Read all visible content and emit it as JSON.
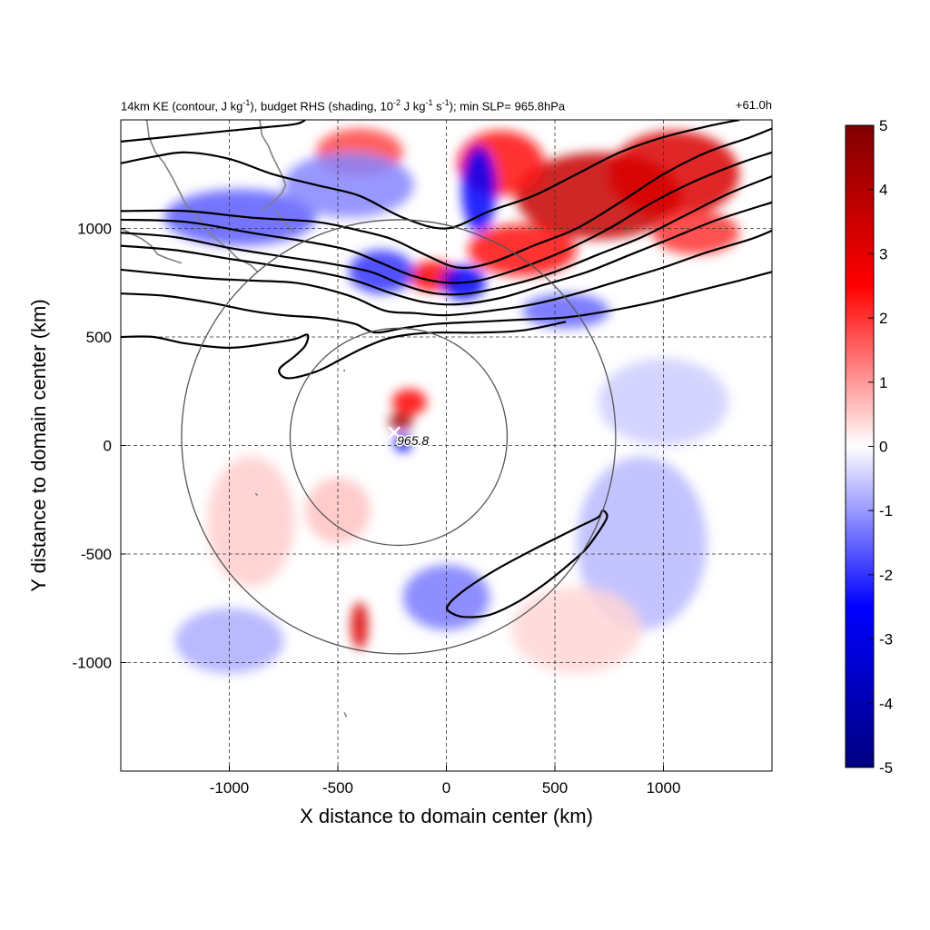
{
  "header": {
    "title_prefix": "14km KE (contour, J kg",
    "sup1": "-1",
    "title_mid1": "), budget RHS (shading, 10",
    "sup2": "-2",
    "title_mid2": " J kg",
    "sup3": "-1",
    "title_mid3": " s",
    "sup4": "-1",
    "title_suffix": "); min SLP= 965.8hPa",
    "lead_time": "+61.0h"
  },
  "chart_data": {
    "type": "heatmap",
    "xlabel": "X distance to domain center (km)",
    "ylabel": "Y distance to domain center (km)",
    "xlim": [
      -1500,
      1500
    ],
    "ylim": [
      -1500,
      1500
    ],
    "xticks": [
      -1000,
      -500,
      0,
      500,
      1000
    ],
    "yticks": [
      -1000,
      -500,
      0,
      500,
      1000
    ],
    "grid": "dashed",
    "colorbar": {
      "min": -5,
      "max": 5,
      "ticks": [
        5,
        4,
        3,
        2,
        1,
        0,
        -1,
        -2,
        -3,
        -4,
        -5
      ],
      "colors": [
        "#000080",
        "#0000ff",
        "#ffffff",
        "#ff0000",
        "#800000"
      ]
    },
    "storm_center": {
      "x": -240,
      "y": 60,
      "label": "965.8"
    },
    "range_circles": [
      {
        "cx": -220,
        "cy": 40,
        "r": 500
      },
      {
        "cx": -220,
        "cy": 40,
        "r": 1000
      }
    ],
    "ke_contours": [
      [
        [
          -1500,
          1400
        ],
        [
          -1300,
          1420
        ],
        [
          -1100,
          1440
        ],
        [
          -900,
          1460
        ],
        [
          -700,
          1480
        ],
        [
          -650,
          1500
        ]
      ],
      [
        [
          -1500,
          1300
        ],
        [
          -1350,
          1330
        ],
        [
          -1200,
          1350
        ],
        [
          -1000,
          1320
        ],
        [
          -800,
          1250
        ],
        [
          -600,
          1200
        ],
        [
          -400,
          1150
        ],
        [
          -200,
          1050
        ],
        [
          0,
          1000
        ],
        [
          200,
          1080
        ],
        [
          400,
          1150
        ],
        [
          600,
          1250
        ],
        [
          800,
          1350
        ],
        [
          1000,
          1420
        ],
        [
          1200,
          1470
        ],
        [
          1350,
          1500
        ]
      ],
      [
        [
          -1500,
          1080
        ],
        [
          -1200,
          1080
        ],
        [
          -900,
          1050
        ],
        [
          -600,
          1030
        ],
        [
          -400,
          990
        ],
        [
          -250,
          950
        ],
        [
          -100,
          880
        ],
        [
          50,
          820
        ],
        [
          200,
          840
        ],
        [
          400,
          920
        ],
        [
          600,
          1000
        ],
        [
          800,
          1120
        ],
        [
          1000,
          1250
        ],
        [
          1200,
          1350
        ],
        [
          1400,
          1420
        ],
        [
          1500,
          1460
        ]
      ],
      [
        [
          -1500,
          1040
        ],
        [
          -1200,
          1030
        ],
        [
          -900,
          980
        ],
        [
          -650,
          940
        ],
        [
          -450,
          900
        ],
        [
          -300,
          840
        ],
        [
          -150,
          780
        ],
        [
          0,
          750
        ],
        [
          150,
          760
        ],
        [
          350,
          820
        ],
        [
          550,
          900
        ],
        [
          750,
          1000
        ],
        [
          950,
          1120
        ],
        [
          1150,
          1220
        ],
        [
          1350,
          1300
        ],
        [
          1500,
          1350
        ]
      ],
      [
        [
          -1500,
          980
        ],
        [
          -1250,
          960
        ],
        [
          -1000,
          910
        ],
        [
          -750,
          870
        ],
        [
          -550,
          840
        ],
        [
          -350,
          800
        ],
        [
          -200,
          740
        ],
        [
          -50,
          700
        ],
        [
          100,
          700
        ],
        [
          300,
          740
        ],
        [
          500,
          800
        ],
        [
          700,
          880
        ],
        [
          900,
          960
        ],
        [
          1100,
          1060
        ],
        [
          1300,
          1160
        ],
        [
          1500,
          1240
        ]
      ],
      [
        [
          -1500,
          920
        ],
        [
          -1250,
          900
        ],
        [
          -1000,
          860
        ],
        [
          -800,
          830
        ],
        [
          -600,
          800
        ],
        [
          -420,
          760
        ],
        [
          -250,
          700
        ],
        [
          -100,
          660
        ],
        [
          50,
          650
        ],
        [
          250,
          680
        ],
        [
          450,
          740
        ],
        [
          650,
          800
        ],
        [
          850,
          880
        ],
        [
          1050,
          960
        ],
        [
          1250,
          1040
        ],
        [
          1500,
          1120
        ]
      ],
      [
        [
          -1500,
          810
        ],
        [
          -1300,
          790
        ],
        [
          -1100,
          770
        ],
        [
          -900,
          760
        ],
        [
          -700,
          750
        ],
        [
          -550,
          720
        ],
        [
          -420,
          680
        ],
        [
          -280,
          620
        ],
        [
          -150,
          610
        ],
        [
          0,
          600
        ],
        [
          200,
          620
        ],
        [
          400,
          650
        ],
        [
          600,
          700
        ],
        [
          800,
          760
        ],
        [
          1000,
          820
        ],
        [
          1200,
          890
        ],
        [
          1400,
          950
        ],
        [
          1500,
          990
        ]
      ],
      [
        [
          -1500,
          700
        ],
        [
          -1300,
          690
        ],
        [
          -1100,
          660
        ],
        [
          -900,
          620
        ],
        [
          -750,
          600
        ],
        [
          -600,
          590
        ],
        [
          -520,
          580
        ],
        [
          -420,
          560
        ],
        [
          -380,
          540
        ],
        [
          -320,
          520
        ],
        [
          -200,
          540
        ],
        [
          -50,
          560
        ],
        [
          150,
          570
        ],
        [
          350,
          580
        ],
        [
          550,
          590
        ],
        [
          750,
          620
        ],
        [
          950,
          660
        ],
        [
          1150,
          710
        ],
        [
          1350,
          760
        ],
        [
          1500,
          800
        ]
      ],
      [
        [
          -1500,
          500
        ],
        [
          -1350,
          500
        ],
        [
          -1200,
          470
        ],
        [
          -1000,
          450
        ],
        [
          -820,
          470
        ],
        [
          -700,
          490
        ],
        [
          -640,
          510
        ],
        [
          -650,
          460
        ],
        [
          -700,
          410
        ],
        [
          -770,
          350
        ],
        [
          -730,
          310
        ],
        [
          -600,
          340
        ],
        [
          -480,
          400
        ],
        [
          -380,
          450
        ],
        [
          -280,
          490
        ],
        [
          -180,
          510
        ],
        [
          -50,
          520
        ],
        [
          150,
          520
        ],
        [
          350,
          530
        ],
        [
          550,
          570
        ]
      ],
      [
        [
          0,
          -750
        ],
        [
          30,
          -710
        ],
        [
          120,
          -640
        ],
        [
          250,
          -560
        ],
        [
          400,
          -480
        ],
        [
          520,
          -420
        ],
        [
          620,
          -370
        ],
        [
          700,
          -330
        ],
        [
          720,
          -300
        ],
        [
          740,
          -330
        ],
        [
          700,
          -400
        ],
        [
          640,
          -480
        ],
        [
          550,
          -560
        ],
        [
          450,
          -640
        ],
        [
          330,
          -720
        ],
        [
          200,
          -780
        ],
        [
          80,
          -790
        ],
        [
          20,
          -770
        ],
        [
          0,
          -750
        ]
      ]
    ],
    "coastlines": [
      [
        [
          -1380,
          1500
        ],
        [
          -1370,
          1420
        ],
        [
          -1340,
          1350
        ],
        [
          -1300,
          1300
        ],
        [
          -1260,
          1230
        ],
        [
          -1230,
          1170
        ],
        [
          -1200,
          1110
        ],
        [
          -1150,
          1060
        ],
        [
          -1110,
          1000
        ],
        [
          -1060,
          950
        ],
        [
          -1000,
          900
        ],
        [
          -960,
          860
        ],
        [
          -900,
          830
        ],
        [
          -870,
          800
        ]
      ],
      [
        [
          -860,
          1500
        ],
        [
          -850,
          1430
        ],
        [
          -820,
          1380
        ],
        [
          -800,
          1330
        ],
        [
          -780,
          1290
        ],
        [
          -760,
          1250
        ],
        [
          -740,
          1200
        ],
        [
          -760,
          1160
        ],
        [
          -800,
          1120
        ],
        [
          -850,
          1080
        ]
      ],
      [
        [
          -1500,
          1000
        ],
        [
          -1440,
          970
        ],
        [
          -1400,
          950
        ],
        [
          -1360,
          920
        ],
        [
          -1330,
          880
        ],
        [
          -1280,
          860
        ],
        [
          -1220,
          840
        ]
      ],
      [
        [
          -780,
          1080
        ],
        [
          -760,
          1040
        ],
        [
          -730,
          1010
        ],
        [
          -700,
          980
        ]
      ],
      [
        [
          -470,
          350
        ],
        [
          -470,
          340
        ]
      ],
      [
        [
          -500,
          80
        ],
        [
          -495,
          70
        ]
      ],
      [
        [
          -880,
          -220
        ],
        [
          -870,
          -230
        ]
      ],
      [
        [
          -470,
          -1230
        ],
        [
          -460,
          -1250
        ]
      ]
    ],
    "anomaly_regions": [
      {
        "x": 700,
        "y": 1150,
        "sx": 380,
        "sy": 200,
        "v": 3.6
      },
      {
        "x": 1050,
        "y": 1250,
        "sx": 300,
        "sy": 200,
        "v": 3.2
      },
      {
        "x": 250,
        "y": 1300,
        "sx": 200,
        "sy": 150,
        "v": 2.4
      },
      {
        "x": 350,
        "y": 900,
        "sx": 250,
        "sy": 120,
        "v": 2.4
      },
      {
        "x": -400,
        "y": 1350,
        "sx": 200,
        "sy": 110,
        "v": 1.8
      },
      {
        "x": 1150,
        "y": 980,
        "sx": 200,
        "sy": 100,
        "v": 2.0
      },
      {
        "x": -60,
        "y": 780,
        "sx": 120,
        "sy": 70,
        "v": 2.6
      },
      {
        "x": -210,
        "y": 110,
        "sx": 55,
        "sy": 40,
        "v": 4.5
      },
      {
        "x": -170,
        "y": 200,
        "sx": 80,
        "sy": 60,
        "v": 2.5
      },
      {
        "x": -400,
        "y": -830,
        "sx": 40,
        "sy": 110,
        "v": 3.2
      },
      {
        "x": 150,
        "y": 1180,
        "sx": 80,
        "sy": 200,
        "v": -2.5
      },
      {
        "x": -950,
        "y": 1050,
        "sx": 350,
        "sy": 130,
        "v": -1.6
      },
      {
        "x": -450,
        "y": 1200,
        "sx": 300,
        "sy": 150,
        "v": -1.2
      },
      {
        "x": -300,
        "y": 800,
        "sx": 150,
        "sy": 100,
        "v": -2.0
      },
      {
        "x": 80,
        "y": 750,
        "sx": 100,
        "sy": 80,
        "v": -2.6
      },
      {
        "x": 550,
        "y": 620,
        "sx": 200,
        "sy": 80,
        "v": -1.5
      },
      {
        "x": -200,
        "y": 10,
        "sx": 40,
        "sy": 40,
        "v": -2.8
      },
      {
        "x": 0,
        "y": -700,
        "sx": 200,
        "sy": 150,
        "v": -1.3
      },
      {
        "x": 900,
        "y": -450,
        "sx": 300,
        "sy": 400,
        "v": -0.7
      },
      {
        "x": -1000,
        "y": -900,
        "sx": 250,
        "sy": 150,
        "v": -0.8
      },
      {
        "x": -900,
        "y": -350,
        "sx": 200,
        "sy": 300,
        "v": 0.5
      },
      {
        "x": -500,
        "y": -300,
        "sx": 150,
        "sy": 150,
        "v": 0.6
      },
      {
        "x": 600,
        "y": -850,
        "sx": 300,
        "sy": 200,
        "v": 0.4
      },
      {
        "x": 1000,
        "y": 200,
        "sx": 300,
        "sy": 200,
        "v": -0.5
      }
    ]
  }
}
